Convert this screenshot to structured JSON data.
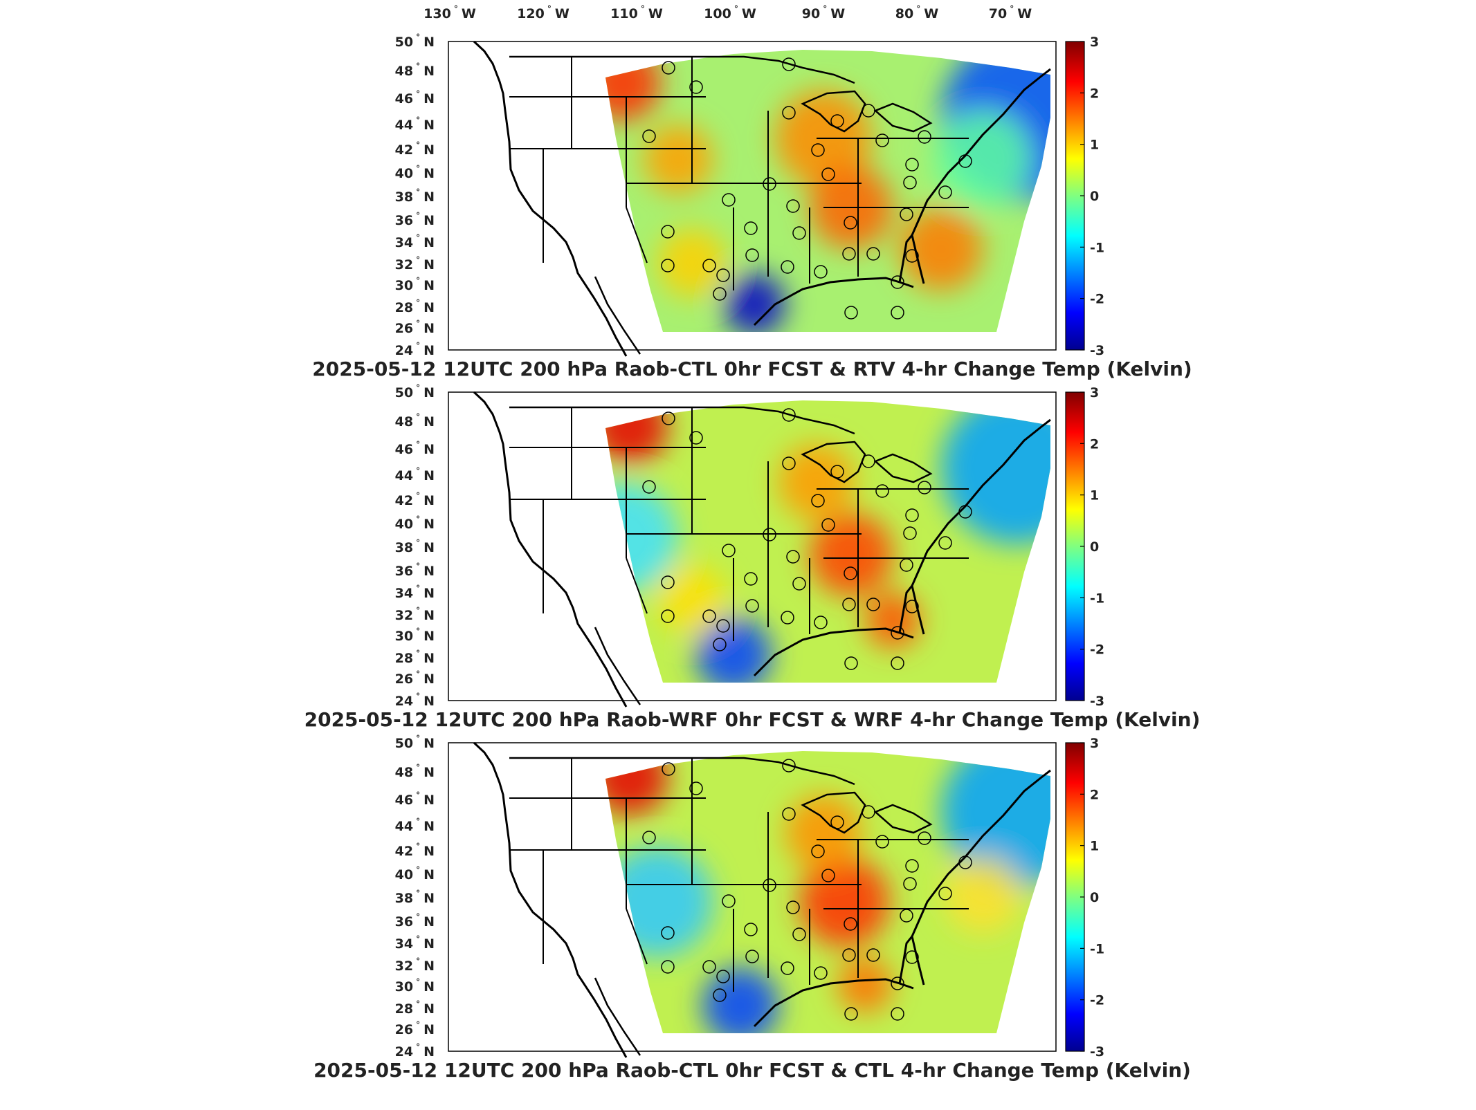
{
  "top_axis": {
    "lon_labels": [
      "130",
      "120",
      "110",
      "100",
      "90",
      "80",
      "70"
    ],
    "lon_suffix": "W"
  },
  "lat_axis": {
    "lat_labels": [
      "50",
      "48",
      "46",
      "44",
      "42",
      "40",
      "38",
      "36",
      "34",
      "32",
      "30",
      "28",
      "26",
      "24"
    ],
    "lat_suffix": "N"
  },
  "panels": [
    {
      "title": "2025-05-12 12UTC 200 hPa Raob-CTL 0hr FCST & RTV 4-hr Change Temp (Kelvin)",
      "colorbar_ticks": [
        "3",
        "2",
        "1",
        "0",
        "-1",
        "-2",
        "-3"
      ]
    },
    {
      "title": "2025-05-12 12UTC 200 hPa Raob-WRF 0hr FCST & WRF 4-hr Change Temp (Kelvin)",
      "colorbar_ticks": [
        "3",
        "2",
        "1",
        "0",
        "-1",
        "-2",
        "-3"
      ]
    },
    {
      "title": "2025-05-12 12UTC 200 hPa Raob-CTL 0hr FCST & CTL 4-hr Change Temp (Kelvin)",
      "colorbar_ticks": [
        "3",
        "2",
        "1",
        "0",
        "-1",
        "-2",
        "-3"
      ]
    }
  ],
  "colorbar": {
    "min": -3,
    "max": 3,
    "colormap": "jet",
    "colors": [
      "#00008f",
      "#0000ff",
      "#00ffff",
      "#ffff00",
      "#ff0000",
      "#800000"
    ]
  }
}
